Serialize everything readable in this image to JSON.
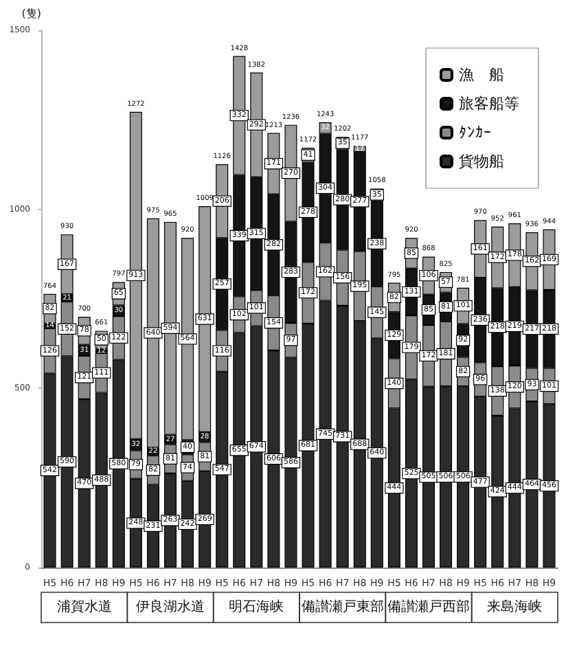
{
  "chart_data": {
    "type": "bar",
    "stacked": true,
    "ylabel": "(隻)",
    "categories": [
      "H5",
      "H6",
      "H7",
      "H8",
      "H9",
      "H5",
      "H6",
      "H7",
      "H8",
      "H9",
      "H5",
      "H6",
      "H7",
      "H8",
      "H9",
      "H5",
      "H6",
      "H7",
      "H8",
      "H9",
      "H5",
      "H6",
      "H7",
      "H8",
      "H9",
      "H5",
      "H6",
      "H7",
      "H8",
      "H9"
    ],
    "series": [
      {
        "name": "貨物船",
        "color": "#2b2b2b",
        "values": [
          542,
          590,
          470,
          488,
          580,
          248,
          231,
          263,
          242,
          269,
          547,
          655,
          674,
          606,
          586,
          681,
          745,
          731,
          688,
          640,
          444,
          525,
          505,
          506,
          506,
          477,
          424,
          444,
          464,
          456
        ]
      },
      {
        "name": "ﾀﾝｶｰ",
        "color": "#8a8a8a",
        "values": [
          126,
          152,
          121,
          111,
          122,
          79,
          82,
          81,
          74,
          81,
          116,
          102,
          101,
          154,
          97,
          172,
          162,
          156,
          195,
          145,
          140,
          179,
          172,
          181,
          82,
          96,
          138,
          120,
          93,
          101
        ]
      },
      {
        "name": "旅客船等",
        "color": "#141414",
        "values": [
          14,
          21,
          31,
          12,
          30,
          32,
          22,
          27,
          40,
          28,
          257,
          339,
          315,
          282,
          283,
          278,
          304,
          280,
          277,
          238,
          129,
          131,
          85,
          81,
          92,
          236,
          218,
          219,
          217,
          218
        ]
      },
      {
        "name": "漁　船",
        "color": "#9c9c9c",
        "values": [
          82,
          167,
          78,
          50,
          65,
          913,
          640,
          594,
          564,
          631,
          206,
          332,
          292,
          171,
          270,
          41,
          32,
          35,
          17,
          35,
          82,
          85,
          106,
          57,
          101,
          161,
          172,
          178,
          162,
          169
        ]
      }
    ],
    "totals": [
      "764",
      "930",
      "700",
      "661",
      "797",
      "1272",
      "975",
      "965",
      "920",
      "1009",
      "1126",
      "1428",
      "1382",
      "1213",
      "1236",
      "1172",
      "1243",
      "1202",
      "1177",
      "1058",
      "795",
      "920",
      "868",
      "825",
      "781",
      "970",
      "952",
      "961",
      "936",
      "944"
    ],
    "data_labels": true,
    "annotations": [
      "浦賀水道",
      "伊良湖水道",
      "明石海峡",
      "備讃瀬戸東部",
      "備讃瀬戸西部",
      "来島海峡"
    ],
    "ylim": [
      0,
      1500
    ],
    "yticks": [
      0,
      500,
      1000,
      1500
    ],
    "legend": "top right"
  }
}
